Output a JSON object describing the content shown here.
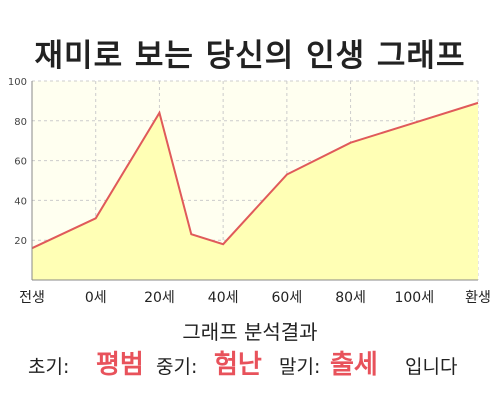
{
  "title": "재미로 보는 당신의 인생 그래프",
  "chart_data": {
    "type": "area",
    "title": "재미로 보는 당신의 인생 그래프",
    "x_tick_labels": [
      "전생",
      "0세",
      "20세",
      "40세",
      "60세",
      "80세",
      "100세",
      "환생"
    ],
    "points": [
      {
        "x": "전생",
        "y": 16
      },
      {
        "x": "0세",
        "y": 31
      },
      {
        "x": "20세",
        "y": 84
      },
      {
        "x": "30세",
        "y": 23
      },
      {
        "x": "40세",
        "y": 18
      },
      {
        "x": "60세",
        "y": 53
      },
      {
        "x": "80세",
        "y": 69
      },
      {
        "x": "100세",
        "y": 79
      },
      {
        "x": "환생",
        "y": 89
      }
    ],
    "ylim": [
      0,
      100
    ],
    "y_ticks": [
      20,
      40,
      60,
      80,
      100
    ],
    "grid": true,
    "legend": "none",
    "colors": {
      "line": "#e05a5a",
      "fill": "#ffffb5",
      "plot_bg": "#fffff0",
      "grid": "#cccccc"
    }
  },
  "result": {
    "heading": "그래프 분석결과",
    "early_label": "초기:",
    "early_value": "평범",
    "mid_label": "중기:",
    "mid_value": "험난",
    "late_label": "말기:",
    "late_value": "출세",
    "ending": "입니다"
  }
}
